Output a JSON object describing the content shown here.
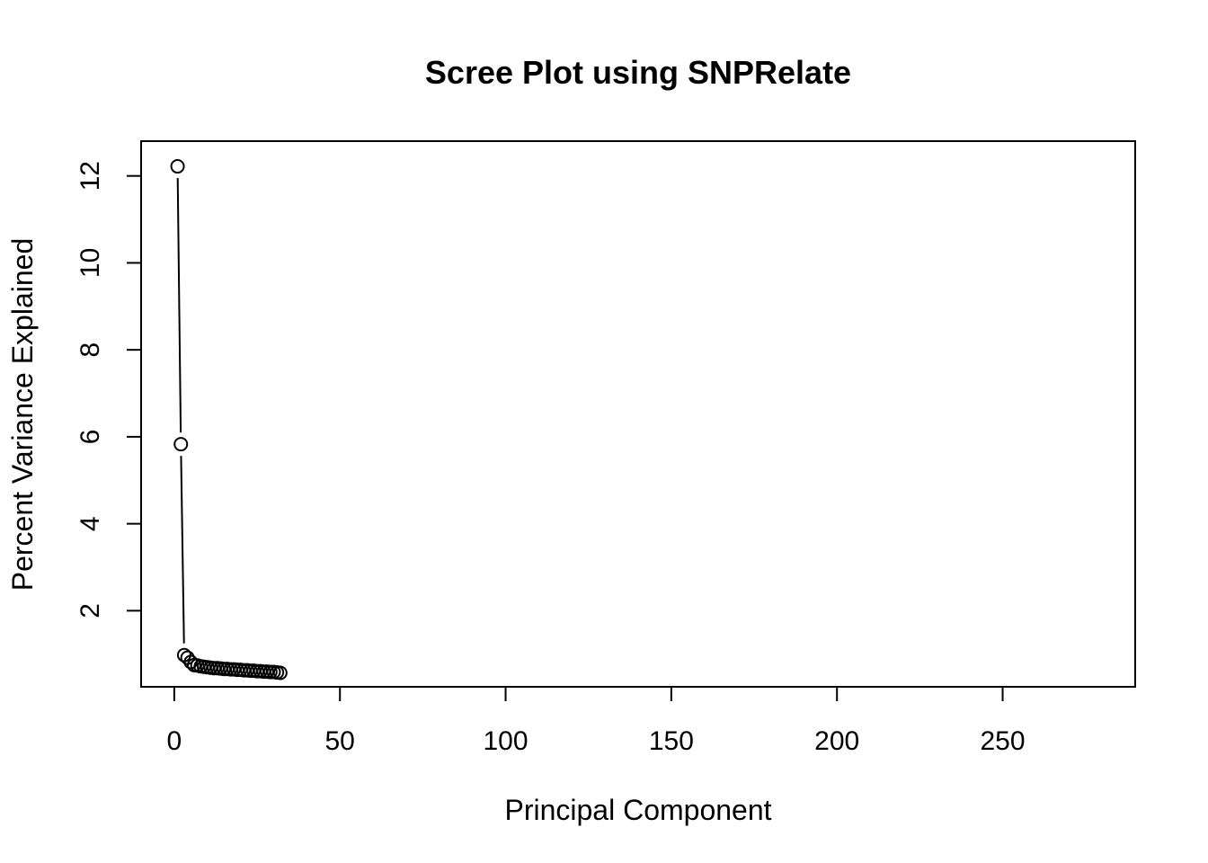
{
  "chart_data": {
    "type": "line",
    "title": "Scree Plot using SNPRelate",
    "xlabel": "Principal Component",
    "ylabel": "Percent Variance Explained",
    "xlim": [
      -10,
      290
    ],
    "ylim": [
      0.25,
      12.8
    ],
    "x_ticks": [
      0,
      50,
      100,
      150,
      200,
      250
    ],
    "y_ticks": [
      2,
      4,
      6,
      8,
      10,
      12
    ],
    "marker": "open-circle",
    "line_style": "solid-with-gaps",
    "colors": {
      "line": "#000000",
      "marker": "#000000",
      "background": "#ffffff"
    },
    "grid": false,
    "legend": "none",
    "series": [
      {
        "x": [
          1,
          2,
          3,
          4,
          5,
          6,
          7,
          8,
          9,
          10,
          11,
          12,
          13,
          14,
          15,
          16,
          17,
          18,
          19,
          20,
          21,
          22,
          23,
          24,
          25,
          26,
          27,
          28,
          29,
          30,
          31,
          32
        ],
        "values": [
          12.22,
          5.83,
          0.98,
          0.92,
          0.82,
          0.75,
          0.74,
          0.72,
          0.71,
          0.7,
          0.69,
          0.68,
          0.68,
          0.67,
          0.66,
          0.66,
          0.65,
          0.65,
          0.64,
          0.64,
          0.63,
          0.63,
          0.62,
          0.62,
          0.61,
          0.61,
          0.6,
          0.6,
          0.59,
          0.59,
          0.58,
          0.57
        ]
      }
    ]
  }
}
